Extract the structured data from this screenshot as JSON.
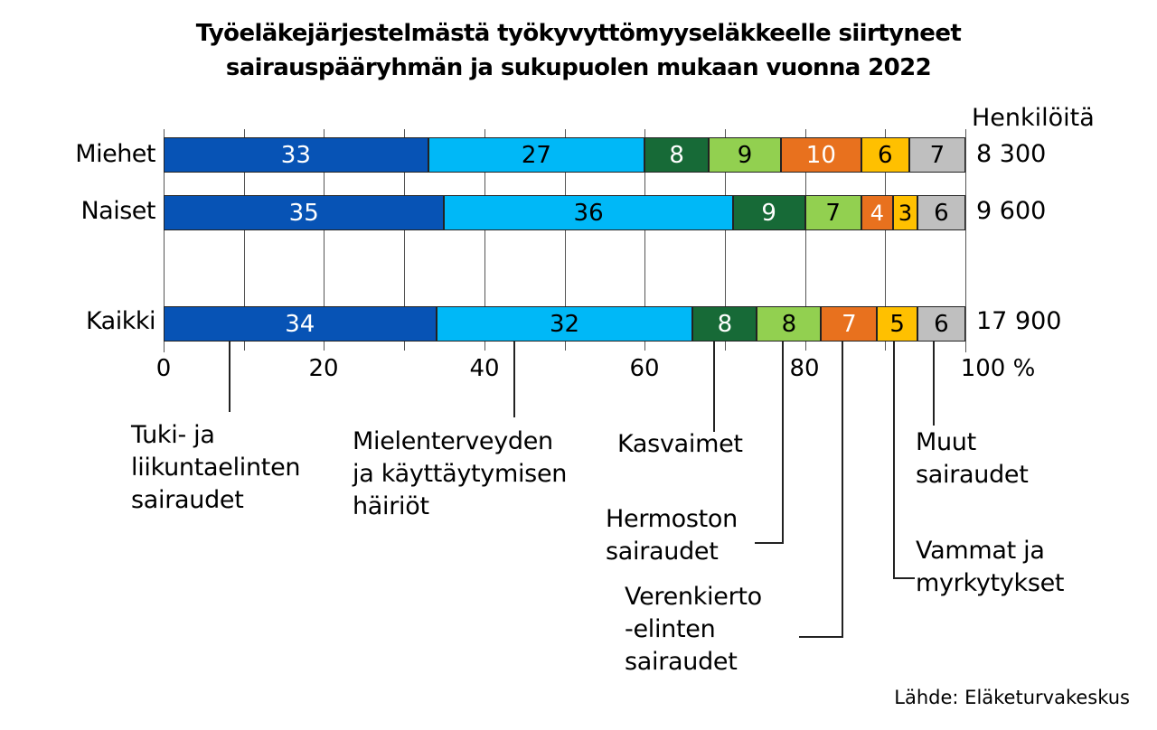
{
  "chart_data": {
    "type": "bar",
    "orientation": "horizontal",
    "stacked": true,
    "title": "Työeläkejärjestelmästä työkyvyttömyyseläkkeelle siirtyneet sairauspääryhmän ja sukupuolen mukaan vuonna 2022",
    "title_lines": [
      "Työeläkejärjestelmästä työkyvyttömyyseläkkeelle siirtyneet",
      "sairauspääryhmän ja sukupuolen mukaan vuonna 2022"
    ],
    "xlabel": "%",
    "ylabel": "",
    "xlim": [
      0,
      100
    ],
    "xticks": [
      "0",
      "20",
      "40",
      "60",
      "80",
      "100 %"
    ],
    "grid": "vertical every 10",
    "categories": [
      "Miehet",
      "Naiset",
      "Kaikki"
    ],
    "totals_header": "Henkilöitä",
    "totals": [
      "8 300",
      "9 600",
      "17 900"
    ],
    "series": [
      {
        "name": "Tuki- ja liikuntaelinten sairaudet",
        "color": "#0753b5",
        "text_color": "#ffffff",
        "values": [
          33,
          35,
          34
        ]
      },
      {
        "name": "Mielenterveyden ja käyttäytymisen häiriöt",
        "color": "#00b8f7",
        "text_color": "#000000",
        "values": [
          27,
          36,
          32
        ]
      },
      {
        "name": "Kasvaimet",
        "color": "#176a37",
        "text_color": "#ffffff",
        "values": [
          8,
          9,
          8
        ]
      },
      {
        "name": "Hermoston sairaudet",
        "color": "#92d050",
        "text_color": "#000000",
        "values": [
          9,
          7,
          8
        ]
      },
      {
        "name": "Verenkiertoelinten sairaudet",
        "color": "#e8711e",
        "text_color": "#ffffff",
        "values": [
          10,
          4,
          7
        ]
      },
      {
        "name": "Vammat ja myrkytykset",
        "color": "#ffc000",
        "text_color": "#000000",
        "values": [
          6,
          3,
          5
        ]
      },
      {
        "name": "Muut sairaudet",
        "color": "#bfbfbf",
        "text_color": "#000000",
        "values": [
          7,
          6,
          6
        ]
      }
    ],
    "legend_position": "below, callout labels with leader lines",
    "annotations": [
      "Lähde: Eläketurvakeskus"
    ]
  },
  "labels": {
    "tuki": "Tuki- ja\nliikuntaelinten\nsairaudet",
    "mielenterveys": "Mielenterveyden\nja käyttäytymisen\nhäiriöt",
    "kasvaimet": "Kasvaimet",
    "hermosto": "Hermoston\nsairaudet",
    "verenkierto": "Verenkierto\n-elinten\nsairaudet",
    "vammat": "Vammat ja\nmyrkytykset",
    "muut": "Muut\nsairaudet"
  },
  "source": "Lähde: Eläketurvakeskus"
}
